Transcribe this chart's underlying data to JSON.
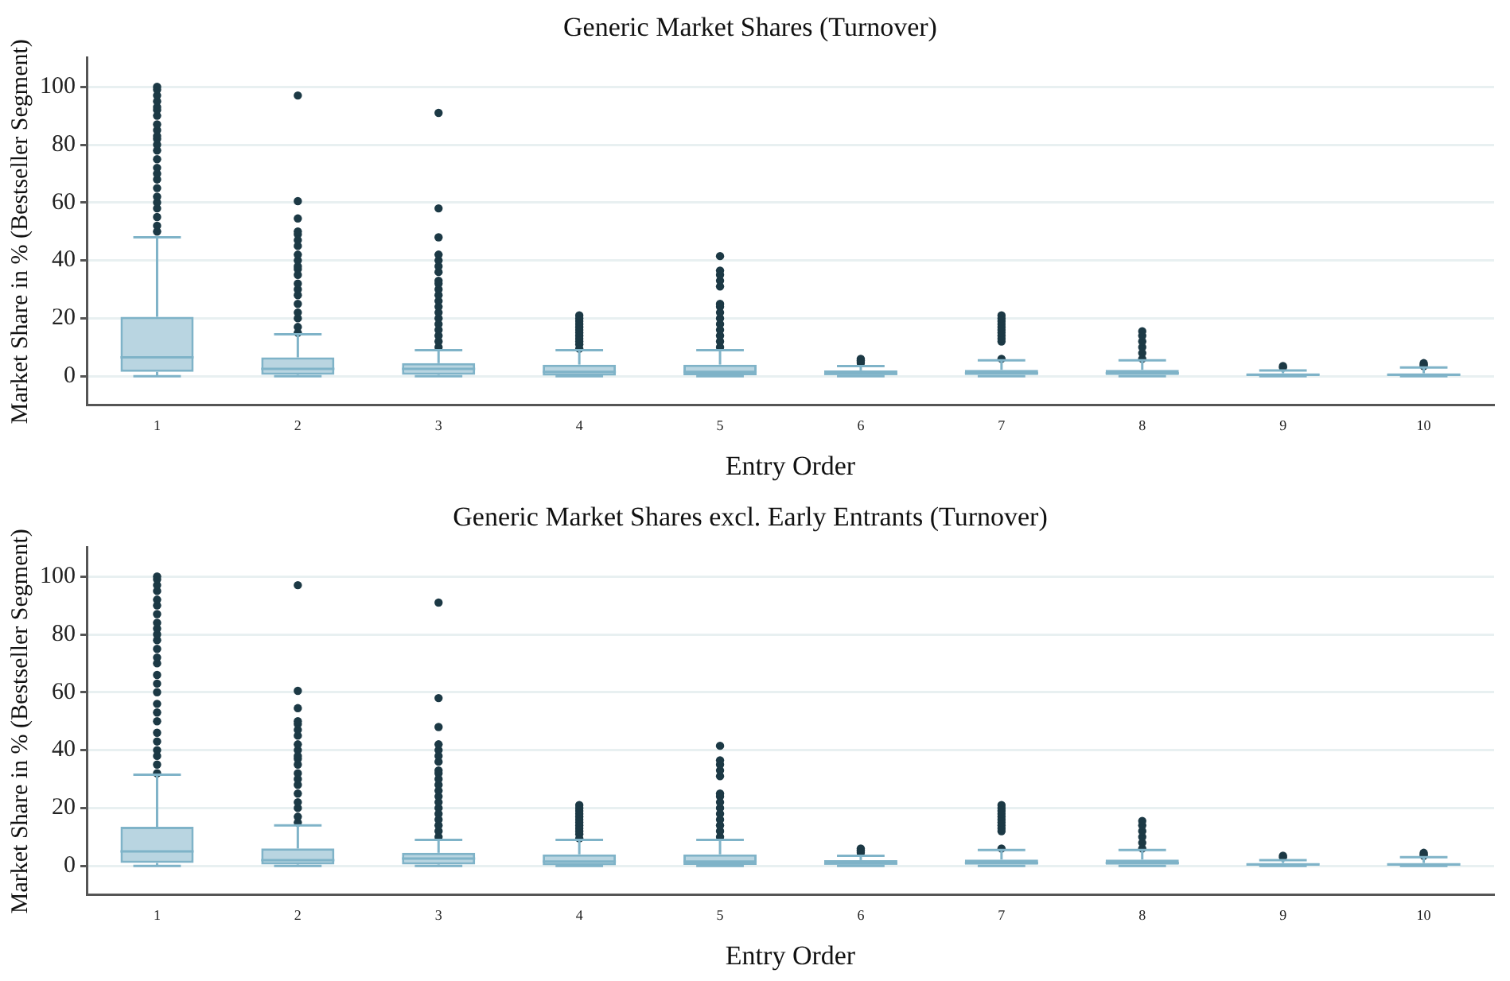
{
  "chart_data": [
    {
      "type": "box",
      "title": "Generic Market Shares (Turnover)",
      "xlabel": "Entry Order",
      "ylabel": "Market Share in % (Bestseller Segment)",
      "categories": [
        "1",
        "2",
        "3",
        "4",
        "5",
        "6",
        "7",
        "8",
        "9",
        "10"
      ],
      "ylim": [
        -10,
        110
      ],
      "yticks": [
        0,
        20,
        40,
        60,
        80,
        100
      ],
      "grid": "y",
      "boxes": [
        {
          "low": 0,
          "q1": 1.5,
          "median": 6.5,
          "q3": 20.5,
          "high": 48,
          "outliers": [
            50,
            52,
            55,
            58,
            60,
            62,
            65,
            68,
            70,
            72,
            75,
            78,
            80,
            82,
            83,
            85,
            87,
            90,
            92,
            93,
            95,
            97,
            99,
            100
          ]
        },
        {
          "low": 0,
          "q1": 0.5,
          "median": 2.5,
          "q3": 6.5,
          "high": 14.5,
          "outliers": [
            15,
            17,
            20,
            22,
            25,
            28,
            30,
            32,
            35,
            37,
            38,
            40,
            42,
            45,
            47,
            49,
            50,
            54.5,
            60.5,
            97
          ]
        },
        {
          "low": 0,
          "q1": 0.5,
          "median": 2.5,
          "q3": 4.5,
          "high": 9,
          "outliers": [
            10,
            12,
            14,
            16,
            18,
            20,
            22,
            24,
            26,
            28,
            30,
            32,
            33,
            36,
            38,
            40,
            42,
            48,
            58,
            91
          ]
        },
        {
          "low": 0,
          "q1": 0.2,
          "median": 1.5,
          "q3": 4,
          "high": 9,
          "outliers": [
            9.5,
            11,
            12,
            13,
            14,
            15,
            16,
            17,
            18,
            19,
            20,
            21
          ]
        },
        {
          "low": 0,
          "q1": 0.3,
          "median": 1.5,
          "q3": 4,
          "high": 9,
          "outliers": [
            10,
            12,
            14,
            16,
            18,
            20,
            22,
            24,
            25,
            31,
            33,
            35,
            36.5,
            41.5
          ]
        },
        {
          "low": 0,
          "q1": 0,
          "median": 0.8,
          "q3": 2,
          "high": 3.5,
          "outliers": [
            4.5,
            5,
            5.5,
            6
          ]
        },
        {
          "low": 0,
          "q1": 0,
          "median": 1,
          "q3": 2.2,
          "high": 5.5,
          "outliers": [
            6,
            12,
            13,
            14,
            15,
            16,
            17,
            18,
            19,
            20,
            21
          ]
        },
        {
          "low": 0,
          "q1": 0,
          "median": 1,
          "q3": 2.2,
          "high": 5.5,
          "outliers": [
            6,
            8,
            10,
            12,
            14,
            15.5
          ]
        },
        {
          "low": 0,
          "q1": 0,
          "median": 0.5,
          "q3": 1,
          "high": 2,
          "outliers": [
            3,
            3.5
          ]
        },
        {
          "low": 0,
          "q1": 0,
          "median": 0.5,
          "q3": 1,
          "high": 3,
          "outliers": [
            3.5,
            4,
            4.5
          ]
        }
      ]
    },
    {
      "type": "box",
      "title": "Generic Market Shares excl. Early Entrants (Turnover)",
      "xlabel": "Entry Order",
      "ylabel": "Market Share in % (Bestseller Segment)",
      "categories": [
        "1",
        "2",
        "3",
        "4",
        "5",
        "6",
        "7",
        "8",
        "9",
        "10"
      ],
      "ylim": [
        -10,
        110
      ],
      "yticks": [
        0,
        20,
        40,
        60,
        80,
        100
      ],
      "grid": "y",
      "boxes": [
        {
          "low": 0,
          "q1": 1,
          "median": 5,
          "q3": 13.5,
          "high": 31.5,
          "outliers": [
            32,
            35,
            38,
            40,
            43,
            46,
            50,
            53,
            56,
            60,
            63,
            66,
            70,
            72,
            75,
            78,
            80,
            82,
            84,
            87,
            90,
            92,
            95,
            97,
            99,
            100
          ]
        },
        {
          "low": 0,
          "q1": 0.5,
          "median": 2,
          "q3": 6,
          "high": 14,
          "outliers": [
            15,
            17,
            20,
            22,
            25,
            28,
            30,
            32,
            35,
            37,
            38,
            40,
            42,
            45,
            47,
            49,
            50,
            54.5,
            60.5,
            97
          ]
        },
        {
          "low": 0,
          "q1": 0.5,
          "median": 2.5,
          "q3": 4.5,
          "high": 9,
          "outliers": [
            10,
            12,
            14,
            16,
            18,
            20,
            22,
            24,
            26,
            28,
            30,
            32,
            33,
            36,
            38,
            40,
            42,
            48,
            58,
            91
          ]
        },
        {
          "low": 0,
          "q1": 0.2,
          "median": 1.5,
          "q3": 4,
          "high": 9,
          "outliers": [
            9.5,
            11,
            12,
            13,
            14,
            15,
            16,
            17,
            18,
            19,
            20,
            21
          ]
        },
        {
          "low": 0,
          "q1": 0.3,
          "median": 1.5,
          "q3": 4,
          "high": 9,
          "outliers": [
            10,
            12,
            14,
            16,
            18,
            20,
            22,
            24,
            25,
            31,
            33,
            35,
            36.5,
            41.5
          ]
        },
        {
          "low": 0,
          "q1": 0,
          "median": 0.8,
          "q3": 2,
          "high": 3.5,
          "outliers": [
            4.5,
            5,
            5.5,
            6
          ]
        },
        {
          "low": 0,
          "q1": 0,
          "median": 1,
          "q3": 2.2,
          "high": 5.5,
          "outliers": [
            6,
            12,
            13,
            14,
            15,
            16,
            17,
            18,
            19,
            20,
            21
          ]
        },
        {
          "low": 0,
          "q1": 0,
          "median": 1,
          "q3": 2.2,
          "high": 5.5,
          "outliers": [
            6,
            8,
            10,
            12,
            14,
            15.5
          ]
        },
        {
          "low": 0,
          "q1": 0,
          "median": 0.5,
          "q3": 1,
          "high": 2,
          "outliers": [
            3,
            3.5
          ]
        },
        {
          "low": 0,
          "q1": 0,
          "median": 0.5,
          "q3": 1,
          "high": 3,
          "outliers": [
            3.5,
            4,
            4.5
          ]
        }
      ]
    }
  ]
}
